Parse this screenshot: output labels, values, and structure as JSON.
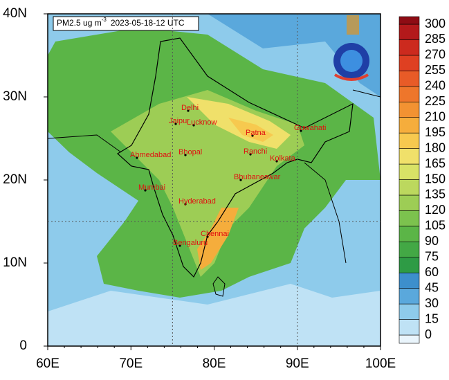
{
  "chart_data": {
    "type": "map",
    "title_prefix": "PM2.5 ug m",
    "title_superscript": "-3",
    "title_time": "2023-05-18-12 UTC",
    "xlim": [
      60,
      100
    ],
    "xticks": [
      {
        "value": 60,
        "label": "60E"
      },
      {
        "value": 70,
        "label": "70E"
      },
      {
        "value": 80,
        "label": "80E"
      },
      {
        "value": 90,
        "label": "90E"
      },
      {
        "value": 100,
        "label": "100E"
      }
    ],
    "ylim": [
      0,
      40
    ],
    "yticks": [
      0,
      {
        "value": 10,
        "label": "10N"
      },
      {
        "value": 20,
        "label": "20N"
      },
      {
        "value": 30,
        "label": "30N"
      },
      {
        "value": 40,
        "label": "40N"
      }
    ],
    "grid_lines": {
      "x": [
        75,
        90
      ],
      "y": [
        15
      ]
    },
    "colorbar": {
      "ticks": [
        0,
        15,
        30,
        45,
        60,
        75,
        90,
        105,
        120,
        135,
        150,
        165,
        180,
        195,
        210,
        225,
        240,
        255,
        270,
        285,
        300
      ],
      "colors": [
        "#eaf5fc",
        "#bfe2f5",
        "#8ecbeb",
        "#5aa8dc",
        "#3d8fcc",
        "#2e9b45",
        "#43a845",
        "#5bb547",
        "#7cc24e",
        "#9dcd55",
        "#bcd85e",
        "#d8e266",
        "#f0e06a",
        "#f7c94f",
        "#f5ad3c",
        "#f29232",
        "#ee762b",
        "#e85b27",
        "#df4022",
        "#cc2a1e",
        "#b3191b",
        "#8e0c14"
      ]
    },
    "cities": [
      "Delhi",
      "Jaipur",
      "Lucknow",
      "Patna",
      "Guwahati",
      "Bhopal",
      "Ahmedabad",
      "Ranchi",
      "Kolkata",
      "Mumbai",
      "Bhubaneswar",
      "Hyderabad",
      "Chennai",
      "Bengaluru"
    ]
  }
}
